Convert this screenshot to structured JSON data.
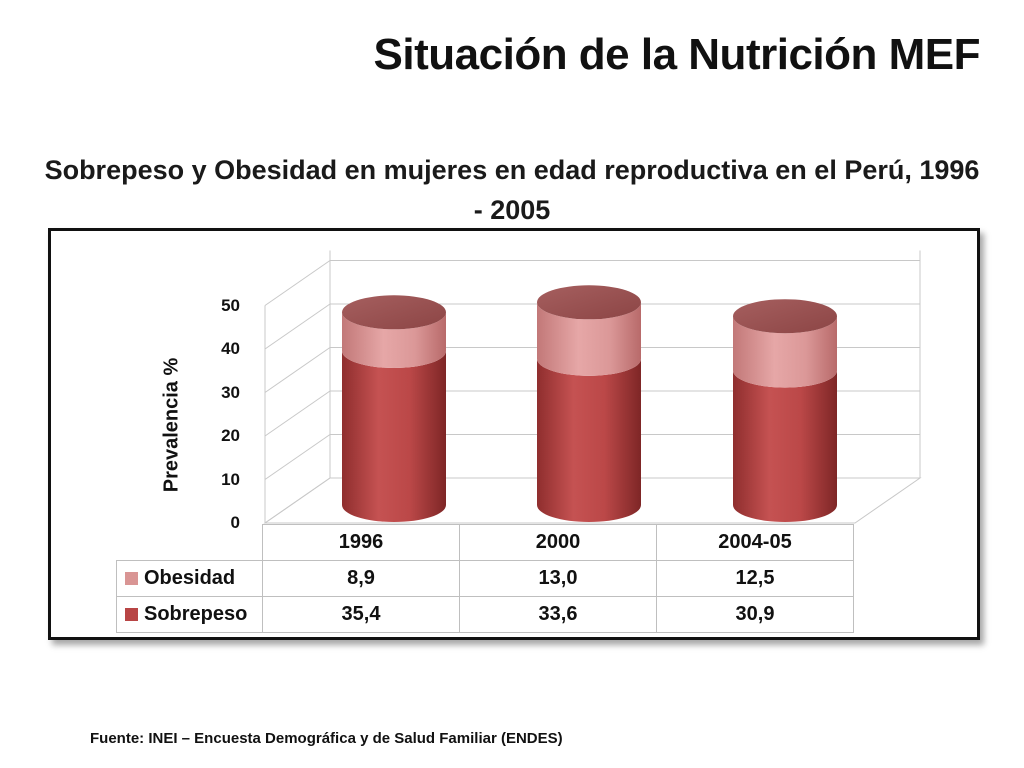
{
  "slide_title": "Situación de la Nutrición MEF",
  "source": "Fuente: INEI – Encuesta Demográfica y de Salud Familiar (ENDES)",
  "colors": {
    "sobrepeso": "#b84545",
    "obesidad": "#d99594"
  },
  "chart_data": {
    "type": "bar",
    "stacked": true,
    "style": "3d-cylinder",
    "title": "Sobrepeso y Obesidad en mujeres en edad reproductiva en el Perú, 1996 - 2005",
    "xlabel": "",
    "ylabel": "Prevalencia %",
    "ylim": [
      0,
      50
    ],
    "yticks": [
      "0",
      "10",
      "20",
      "30",
      "40",
      "50"
    ],
    "categories": [
      "1996",
      "2000",
      "2004-05"
    ],
    "series": [
      {
        "name": "Sobrepeso",
        "values": [
          35.4,
          33.6,
          30.9
        ],
        "labels": [
          "35,4",
          "33,6",
          "30,9"
        ]
      },
      {
        "name": "Obesidad",
        "values": [
          8.9,
          13.0,
          12.5
        ],
        "labels": [
          "8,9",
          "13,0",
          "12,5"
        ]
      }
    ],
    "grid": true,
    "legend": "data-table"
  }
}
